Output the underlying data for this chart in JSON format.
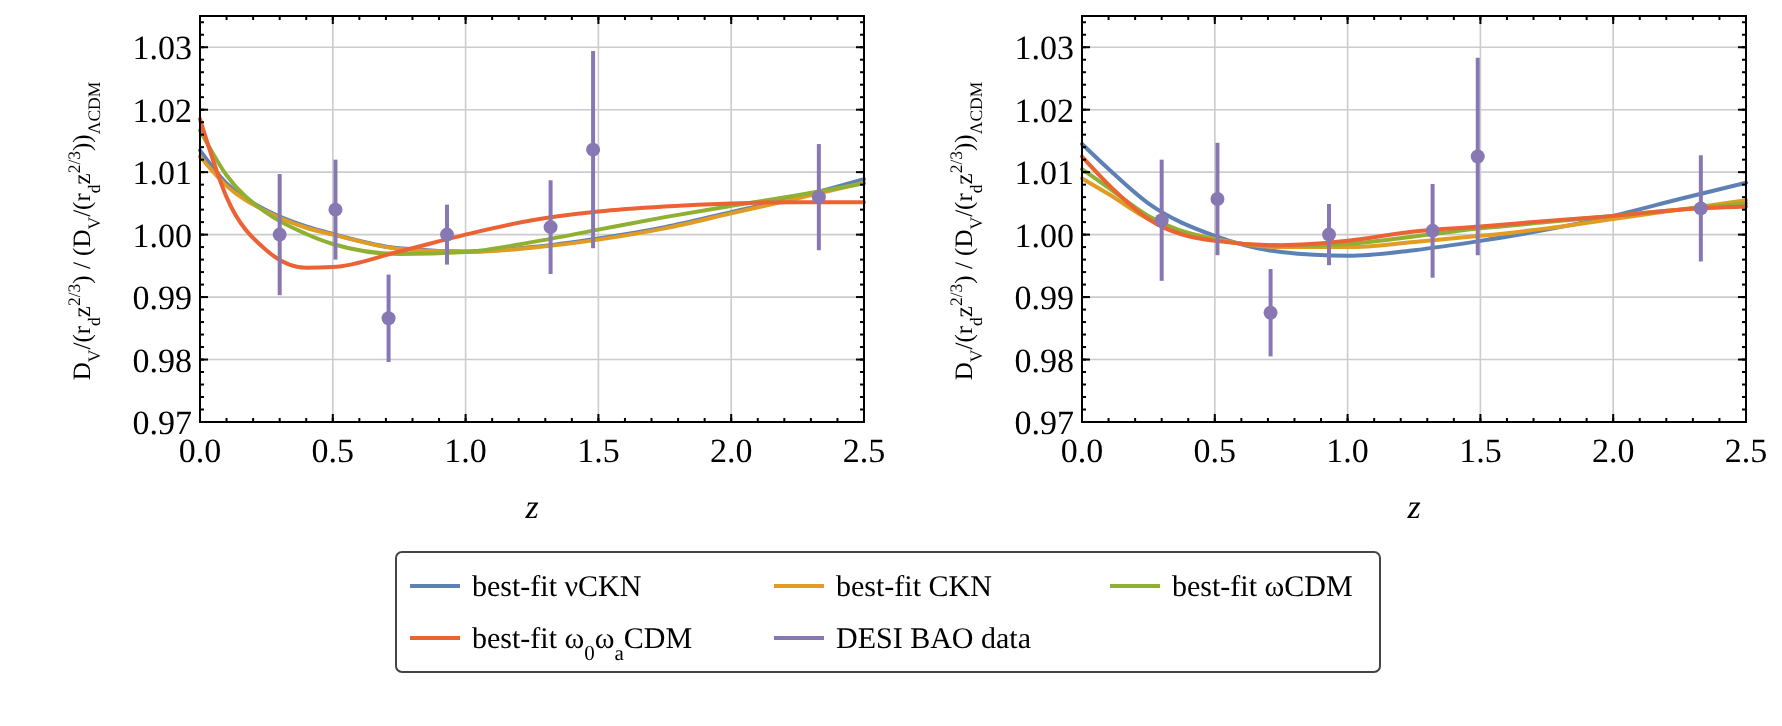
{
  "chart_data": [
    {
      "type": "line",
      "xlabel": "z",
      "ylabel": "D$_{V}$/(r$_{d}$z$^{2/3}$) / (D$_{V}$/(r$_{d}$z$^{2/3}$))$_{ΛCDM}$",
      "x": [
        0,
        0.1,
        0.25,
        0.4,
        0.5,
        0.75,
        1.0,
        1.25,
        1.5,
        1.75,
        2.0,
        2.25,
        2.5
      ],
      "xlim": [
        0,
        2.5
      ],
      "xticks": [
        {
          "value": 0,
          "label": "0.0"
        },
        0.5,
        {
          "value": 1,
          "label": "1.0"
        },
        1.5,
        {
          "value": 2,
          "label": "2.0"
        },
        2.5
      ],
      "ylim": [
        0.97,
        1.035
      ],
      "yticks": [
        0.97,
        0.98,
        0.99,
        {
          "value": 1,
          "label": "1.00"
        },
        1.01,
        1.02,
        1.03
      ],
      "grid": true,
      "legend": "bottom",
      "series": [
        {
          "name": "best-fit νCKN",
          "color": "#5e81b5",
          "values": [
            1.0135,
            1.0082,
            1.0039,
            1.0013,
            1.0001,
            0.9978,
            0.9973,
            0.998,
            0.9994,
            1.0012,
            1.0036,
            1.006,
            1.0089
          ]
        },
        {
          "name": "best-fit CKN",
          "color": "#e19c24",
          "values": [
            1.0125,
            1.0078,
            1.0037,
            1.0011,
            1.0,
            0.9977,
            0.9972,
            0.9979,
            0.9992,
            1.001,
            1.0034,
            1.0058,
            1.0083
          ]
        },
        {
          "name": "best-fit ωCDM",
          "color": "#8fb032",
          "values": [
            1.0167,
            1.0095,
            1.0035,
            1.0001,
            0.9985,
            0.9969,
            0.9972,
            0.9988,
            1.0008,
            1.0028,
            1.0046,
            1.0063,
            1.0082
          ]
        },
        {
          "name": "best-fit ω$_{0}$ω$_{a}$CDM",
          "color": "#eb6235",
          "values": [
            1.0185,
            1.006,
            0.9975,
            0.9947,
            0.9948,
            0.9973,
            1.0,
            1.0023,
            1.0037,
            1.0045,
            1.005,
            1.0052,
            1.0052
          ]
        },
        {
          "name": "DESI BAO data",
          "type": "scatter",
          "marker": "circle",
          "color": "#8778b3",
          "x": [
            0.3,
            0.51,
            0.71,
            0.93,
            1.32,
            1.48,
            2.33
          ],
          "values": [
            1.0,
            1.004,
            0.9866,
            1.0,
            1.0012,
            1.0136,
            1.006
          ],
          "errors": [
            0.0097,
            0.008,
            0.007,
            0.0048,
            0.0075,
            0.0158,
            0.0085
          ]
        }
      ]
    },
    {
      "type": "line",
      "xlabel": "z",
      "ylabel": "D$_{V}$/(r$_{d}$z$^{2/3}$) / (D$_{V}$/(r$_{d}$z$^{2/3}$))$_{ΛCDM}$",
      "x": [
        0,
        0.1,
        0.25,
        0.5,
        0.75,
        1.0,
        1.25,
        1.5,
        1.75,
        2.0,
        2.25,
        2.5
      ],
      "xlim": [
        0,
        2.5
      ],
      "xticks": [
        {
          "value": 0,
          "label": "0.0"
        },
        0.5,
        {
          "value": 1,
          "label": "1.0"
        },
        1.5,
        {
          "value": 2,
          "label": "2.0"
        },
        2.5
      ],
      "ylim": [
        0.97,
        1.035
      ],
      "yticks": [
        0.97,
        0.98,
        0.99,
        {
          "value": 1,
          "label": "1.00"
        },
        1.01,
        1.02,
        1.03
      ],
      "grid": true,
      "series": [
        {
          "color": "#5e81b5",
          "values": [
            1.0145,
            1.0105,
            1.005,
            0.9998,
            0.9972,
            0.9966,
            0.9975,
            0.999,
            1.0008,
            1.003,
            1.0057,
            1.0083
          ]
        },
        {
          "color": "#e19c24",
          "values": [
            1.009,
            1.0065,
            1.0025,
            0.9993,
            0.998,
            0.998,
            0.9988,
            0.9998,
            1.001,
            1.0025,
            1.004,
            1.0055
          ]
        },
        {
          "color": "#8fb032",
          "values": [
            1.0105,
            1.0075,
            1.003,
            0.9992,
            0.9982,
            0.9985,
            0.9997,
            1.001,
            1.002,
            1.003,
            1.004,
            1.005
          ]
        },
        {
          "color": "#eb6235",
          "values": [
            1.0125,
            1.008,
            1.0025,
            0.999,
            0.9983,
            0.999,
            1.0005,
            1.0013,
            1.0022,
            1.003,
            1.004,
            1.0045
          ]
        },
        {
          "type": "scatter",
          "marker": "circle",
          "color": "#8778b3",
          "x": [
            0.3,
            0.51,
            0.71,
            0.93,
            1.32,
            1.49,
            2.33
          ],
          "values": [
            1.0023,
            1.0057,
            0.9875,
            1.0,
            1.0006,
            1.0125,
            1.0042
          ],
          "errors": [
            0.0097,
            0.009,
            0.007,
            0.0049,
            0.0075,
            0.0158,
            0.0085
          ]
        }
      ]
    }
  ]
}
